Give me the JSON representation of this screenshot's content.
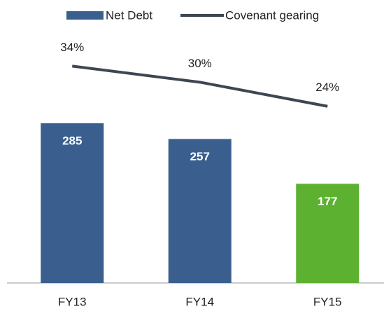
{
  "chart_data": {
    "type": "bar-line",
    "categories": [
      "FY13",
      "FY14",
      "FY15"
    ],
    "ylim": [
      0,
      430
    ],
    "y2lim": [
      -20,
      40
    ],
    "series": [
      {
        "name": "Net Debt",
        "type": "bar",
        "color": "#3a5f8f",
        "colors": [
          "#3a5f8f",
          "#3a5f8f",
          "#5cb130"
        ],
        "values": [
          285,
          257,
          177
        ]
      },
      {
        "name": "Covenant gearing",
        "type": "line",
        "axis": "y2",
        "color": "#3d4752",
        "values": [
          34,
          30,
          24
        ],
        "value_labels": [
          "34%",
          "30%",
          "24%"
        ]
      }
    ]
  }
}
